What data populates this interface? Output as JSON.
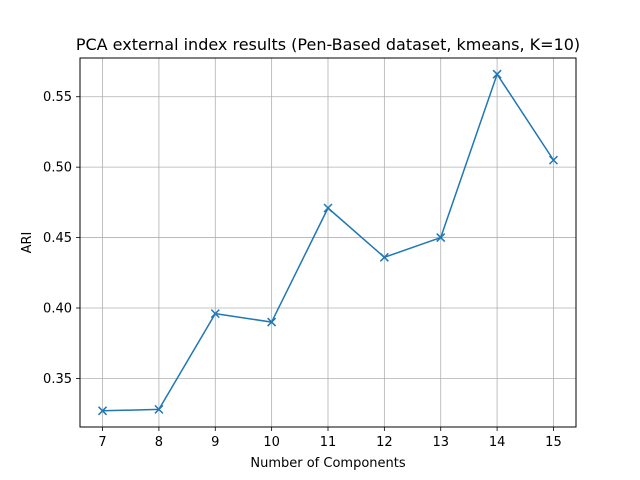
{
  "chart_data": {
    "type": "line",
    "title": "PCA external index results (Pen-Based dataset, kmeans, K=10)",
    "xlabel": "Number of Components",
    "ylabel": "ARI",
    "x": [
      7,
      8,
      9,
      10,
      11,
      12,
      13,
      14,
      15
    ],
    "y": [
      0.327,
      0.328,
      0.396,
      0.39,
      0.471,
      0.436,
      0.45,
      0.566,
      0.505
    ],
    "xlim": [
      6.6,
      15.4
    ],
    "ylim": [
      0.3155,
      0.5775
    ],
    "xticks": [
      "7",
      "8",
      "9",
      "10",
      "11",
      "12",
      "13",
      "14",
      "15"
    ],
    "xtick_values": [
      7,
      8,
      9,
      10,
      11,
      12,
      13,
      14,
      15
    ],
    "yticks": [
      "0.35",
      "0.40",
      "0.45",
      "0.50",
      "0.55"
    ],
    "ytick_values": [
      0.35,
      0.4,
      0.45,
      0.5,
      0.55
    ],
    "grid": true,
    "marker": "x",
    "line_color": "#1f77b4",
    "grid_color": "#b0b0b0"
  }
}
